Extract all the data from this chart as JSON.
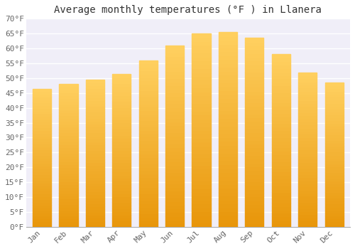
{
  "title": "Average monthly temperatures (°F ) in Llanera",
  "months": [
    "Jan",
    "Feb",
    "Mar",
    "Apr",
    "May",
    "Jun",
    "Jul",
    "Aug",
    "Sep",
    "Oct",
    "Nov",
    "Dec"
  ],
  "values": [
    46.5,
    48,
    49.5,
    51.5,
    56,
    61,
    65,
    65.5,
    63.5,
    58,
    52,
    48.5
  ],
  "bar_color_top": "#FFB732",
  "bar_color_bottom": "#F5A623",
  "bar_edge_color": "#E8960A",
  "ylim": [
    0,
    70
  ],
  "yticks": [
    0,
    5,
    10,
    15,
    20,
    25,
    30,
    35,
    40,
    45,
    50,
    55,
    60,
    65,
    70
  ],
  "ytick_labels": [
    "0°F",
    "5°F",
    "10°F",
    "15°F",
    "20°F",
    "25°F",
    "30°F",
    "35°F",
    "40°F",
    "45°F",
    "50°F",
    "55°F",
    "60°F",
    "65°F",
    "70°F"
  ],
  "background_color": "#ffffff",
  "plot_bg_color": "#f0eef8",
  "grid_color": "#ffffff",
  "title_fontsize": 10,
  "tick_fontsize": 8,
  "font_family": "monospace",
  "tick_color": "#666666"
}
